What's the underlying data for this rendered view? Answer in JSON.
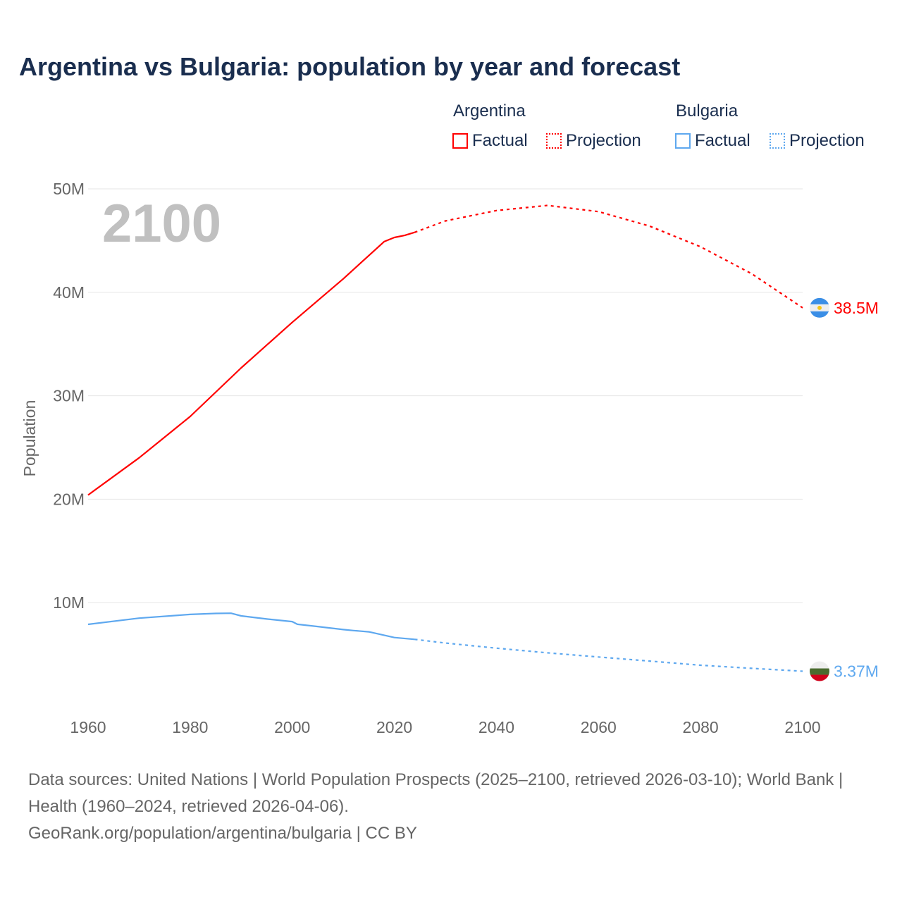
{
  "title": "Argentina vs Bulgaria: population by year and forecast",
  "legend": {
    "groups": [
      {
        "name": "Argentina",
        "color": "#ff0000",
        "factual": "Factual",
        "projection": "Projection"
      },
      {
        "name": "Bulgaria",
        "color": "#5ea8ef",
        "factual": "Factual",
        "projection": "Projection"
      }
    ]
  },
  "year_watermark": "2100",
  "source_text": "Data sources: United Nations | World Population Prospects (2025–2100, retrieved 2026-03-10); World Bank | Health (1960–2024, retrieved 2026-04-06).",
  "source_link": "GeoRank.org/population/argentina/bulgaria | CC BY",
  "chart_data": {
    "type": "line",
    "title": "Argentina vs Bulgaria: population by year and forecast",
    "xlabel": "",
    "ylabel": "Population",
    "xlim": [
      1960,
      2100
    ],
    "ylim": [
      0,
      50000000
    ],
    "x_ticks": [
      "1960",
      "1980",
      "2000",
      "2020",
      "2040",
      "2060",
      "2080",
      "2100"
    ],
    "y_ticks": [
      {
        "v": 10000000,
        "label": "10M"
      },
      {
        "v": 20000000,
        "label": "20M"
      },
      {
        "v": 30000000,
        "label": "30M"
      },
      {
        "v": 40000000,
        "label": "40M"
      },
      {
        "v": 50000000,
        "label": "50M"
      }
    ],
    "series": [
      {
        "name": "Argentina",
        "color": "#ff0000",
        "end_label": "38.5M",
        "factual": {
          "x": [
            1960,
            1970,
            1980,
            1990,
            2000,
            2010,
            2018,
            2020,
            2022,
            2024
          ],
          "y": [
            20.4,
            24.0,
            28.0,
            32.7,
            37.1,
            41.3,
            44.9,
            45.3,
            45.5,
            45.8
          ]
        },
        "projection": {
          "x": [
            2024,
            2030,
            2040,
            2050,
            2060,
            2070,
            2080,
            2090,
            2100
          ],
          "y": [
            45.8,
            46.9,
            47.9,
            48.4,
            47.8,
            46.4,
            44.4,
            41.8,
            38.5
          ]
        }
      },
      {
        "name": "Bulgaria",
        "color": "#5ea8ef",
        "end_label": "3.37M",
        "factual": {
          "x": [
            1960,
            1970,
            1980,
            1985,
            1988,
            1990,
            1995,
            2000,
            2001,
            2005,
            2010,
            2012,
            2015,
            2020,
            2024
          ],
          "y": [
            7.9,
            8.5,
            8.86,
            8.96,
            8.98,
            8.72,
            8.42,
            8.17,
            7.91,
            7.69,
            7.4,
            7.3,
            7.18,
            6.63,
            6.45
          ]
        },
        "projection": {
          "x": [
            2024,
            2030,
            2040,
            2050,
            2060,
            2070,
            2080,
            2090,
            2100
          ],
          "y": [
            6.45,
            6.1,
            5.6,
            5.15,
            4.75,
            4.35,
            3.95,
            3.65,
            3.37
          ]
        }
      }
    ]
  }
}
